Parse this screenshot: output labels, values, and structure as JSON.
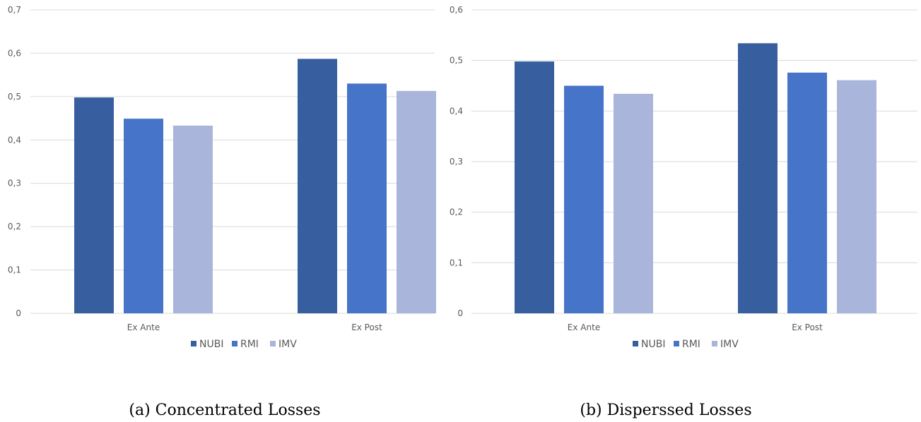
{
  "colors": {
    "NUBI": "#375e9f",
    "RMI": "#4674c8",
    "IMV": "#a9b5da"
  },
  "chart_data": [
    {
      "type": "bar",
      "caption": "(a) Concentrated Losses",
      "categories": [
        "Ex Ante",
        "Ex Post"
      ],
      "series": [
        {
          "name": "NUBI",
          "values": [
            0.498,
            0.587
          ]
        },
        {
          "name": "RMI",
          "values": [
            0.449,
            0.53
          ]
        },
        {
          "name": "IMV",
          "values": [
            0.433,
            0.513
          ]
        }
      ],
      "ylim": [
        0,
        0.7
      ],
      "yticks": [
        "0",
        "0,1",
        "0,2",
        "0,3",
        "0,4",
        "0,5",
        "0,6",
        "0,7"
      ],
      "grid": true,
      "legend": "bottom"
    },
    {
      "type": "bar",
      "caption": "(b) Disperssed Losses",
      "categories": [
        "Ex Ante",
        "Ex Post"
      ],
      "series": [
        {
          "name": "NUBI",
          "values": [
            0.498,
            0.534
          ]
        },
        {
          "name": "RMI",
          "values": [
            0.45,
            0.476
          ]
        },
        {
          "name": "IMV",
          "values": [
            0.434,
            0.461
          ]
        }
      ],
      "ylim": [
        0,
        0.6
      ],
      "yticks": [
        "0",
        "0,1",
        "0,2",
        "0,3",
        "0,4",
        "0,5",
        "0,6"
      ],
      "grid": true,
      "legend": "bottom"
    }
  ]
}
